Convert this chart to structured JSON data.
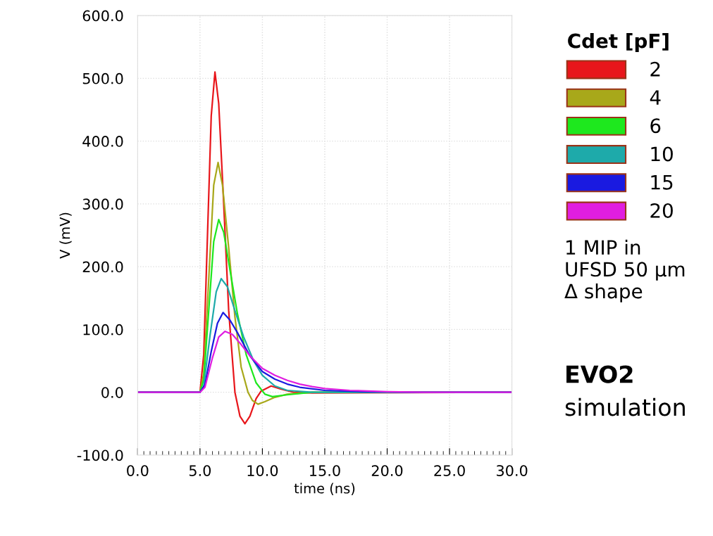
{
  "chart_data": {
    "type": "line",
    "xlabel": "time (ns)",
    "ylabel": "V (mV)",
    "legend_title": "Cdet [pF]",
    "legend": "right",
    "grid": true,
    "marker": "none",
    "line_style": "solid",
    "xlim": [
      0,
      30
    ],
    "ylim": [
      -100,
      600
    ],
    "xticks": [
      {
        "value": 0,
        "label": "0.0"
      },
      {
        "value": 5,
        "label": "5.0"
      },
      {
        "value": 10,
        "label": "10.0"
      },
      {
        "value": 15,
        "label": "15.0"
      },
      {
        "value": 20,
        "label": "20.0"
      },
      {
        "value": 25,
        "label": "25.0"
      },
      {
        "value": 30,
        "label": "30.0"
      }
    ],
    "yticks": [
      {
        "value": -100,
        "label": "-100.0"
      },
      {
        "value": 0,
        "label": "0.0"
      },
      {
        "value": 100,
        "label": "100.0"
      },
      {
        "value": 200,
        "label": "200.0"
      },
      {
        "value": 300,
        "label": "300.0"
      },
      {
        "value": 400,
        "label": "400.0"
      },
      {
        "value": 500,
        "label": "500.0"
      },
      {
        "value": 600,
        "label": "600.0"
      }
    ],
    "series": [
      {
        "name": "2",
        "color": "#e8161b",
        "x": [
          0,
          5.0,
          5.3,
          5.6,
          5.9,
          6.2,
          6.5,
          6.9,
          7.3,
          7.8,
          8.2,
          8.6,
          9.0,
          9.5,
          9.9,
          10.7,
          11.5,
          12.5,
          14,
          30
        ],
        "values": [
          0,
          0,
          60,
          250,
          440,
          510,
          460,
          300,
          130,
          0,
          -38,
          -50,
          -38,
          -10,
          2,
          10,
          5,
          0,
          -1,
          0
        ]
      },
      {
        "name": "4",
        "color": "#a8a81a",
        "x": [
          0,
          5.0,
          5.3,
          5.7,
          6.1,
          6.45,
          6.8,
          7.3,
          7.8,
          8.3,
          8.85,
          9.2,
          9.65,
          10.2,
          11,
          12,
          14,
          30
        ],
        "values": [
          0,
          0,
          30,
          180,
          330,
          366,
          330,
          230,
          120,
          40,
          0,
          -13,
          -19,
          -15,
          -8,
          -3,
          0,
          0
        ]
      },
      {
        "name": "6",
        "color": "#1ee81e",
        "x": [
          0,
          5.0,
          5.3,
          5.7,
          6.1,
          6.5,
          6.9,
          7.4,
          8,
          8.7,
          9.5,
          10.2,
          10.8,
          12,
          14,
          30
        ],
        "values": [
          0,
          0,
          20,
          130,
          240,
          275,
          255,
          195,
          125,
          60,
          15,
          -3,
          -7,
          -4,
          0,
          0
        ]
      },
      {
        "name": "10",
        "color": "#1eaaaa",
        "x": [
          0,
          5.0,
          5.3,
          5.8,
          6.3,
          6.7,
          7.2,
          7.8,
          8.5,
          9.3,
          10,
          11,
          12,
          14,
          30
        ],
        "values": [
          0,
          0,
          10,
          90,
          160,
          181,
          168,
          130,
          88,
          50,
          27,
          10,
          3,
          0,
          0
        ]
      },
      {
        "name": "15",
        "color": "#1a1ae0",
        "x": [
          0,
          5.0,
          5.4,
          5.9,
          6.4,
          6.85,
          7.4,
          8,
          9,
          10,
          11,
          12,
          13,
          15,
          18,
          22,
          30
        ],
        "values": [
          0,
          0,
          12,
          65,
          110,
          127,
          115,
          95,
          58,
          33,
          21,
          13,
          8,
          3,
          1,
          0,
          0
        ]
      },
      {
        "name": "20",
        "color": "#e01ee0",
        "x": [
          0,
          5.0,
          5.4,
          6.0,
          6.5,
          7.0,
          7.6,
          8.3,
          9,
          10,
          11,
          12,
          13,
          14,
          15,
          17,
          20,
          23,
          30
        ],
        "values": [
          0,
          0,
          8,
          55,
          88,
          97,
          92,
          76,
          58,
          38,
          27,
          19,
          13,
          9,
          6,
          3,
          1,
          0,
          0
        ]
      }
    ],
    "annotations": [
      "1 MIP in\nUFSD 50 µm\nΔ shape",
      "EVO2",
      "simulation"
    ]
  }
}
